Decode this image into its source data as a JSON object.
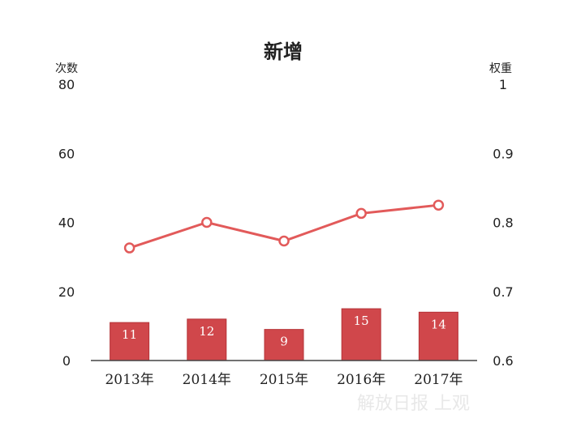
{
  "chart_data": {
    "type": "bar+line",
    "title": "新增",
    "y_left_label": "次数",
    "y_right_label": "权重",
    "categories": [
      "2013年",
      "2014年",
      "2015年",
      "2016年",
      "2017年"
    ],
    "bars": {
      "values": [
        11,
        12,
        9,
        15,
        14
      ]
    },
    "line": {
      "values": [
        0.763,
        0.8,
        0.773,
        0.813,
        0.825
      ]
    },
    "y_left": {
      "min": 0,
      "max": 80,
      "ticks": [
        0,
        20,
        40,
        60,
        80
      ]
    },
    "y_right": {
      "min": 0.6,
      "max": 1,
      "ticks": [
        "0.6",
        "0.7",
        "0.8",
        "0.9",
        "1"
      ]
    },
    "colors": {
      "bar": "#d0474b",
      "bar_edge": "#b53438",
      "line": "#e25a5a",
      "axis": "#444444"
    },
    "grid": false,
    "legend": "none"
  },
  "watermark": {
    "text": "解放日报 上观"
  }
}
